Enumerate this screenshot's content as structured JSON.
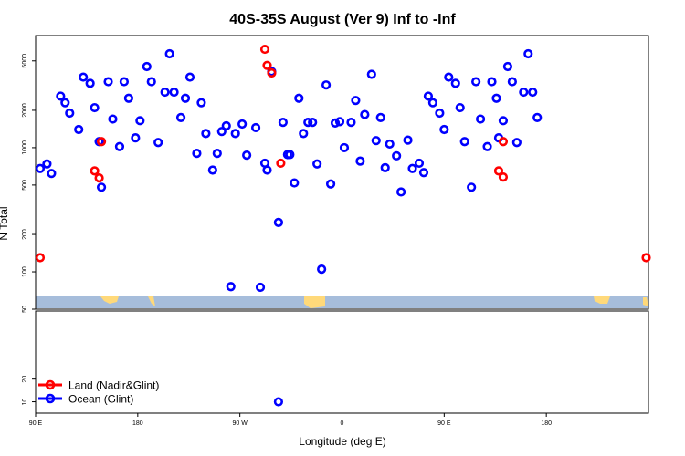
{
  "chart_data": {
    "type": "scatter",
    "title": "40S-35S August (Ver 9)   Inf to -Inf",
    "xlabel": "Longitude (deg E)",
    "ylabel": "N Total",
    "xlim": [
      -90,
      180
    ],
    "x_ticks": [
      {
        "value": -90,
        "label": "90 E"
      },
      {
        "value": -45,
        "label": "180"
      },
      {
        "value": 0,
        "label": "90 W"
      },
      {
        "value": 45,
        "label": "0"
      },
      {
        "value": 90,
        "label": "90 E"
      },
      {
        "value": 135,
        "label": "180"
      }
    ],
    "top_panel": {
      "yscale": "log",
      "ylim": [
        50,
        8000
      ],
      "y_ticks": [
        50,
        100,
        200,
        500,
        1000,
        2000,
        5000
      ]
    },
    "bottom_panel": {
      "yscale": "linear",
      "ylim": [
        5,
        50
      ],
      "y_ticks": [
        10,
        20
      ]
    },
    "legend": {
      "placement": "bottom-left of lower panel",
      "entries": [
        {
          "label": "Land (Nadir&Glint)",
          "color": "#ff0000"
        },
        {
          "label": "Ocean (Glint)",
          "color": "#0000ff"
        }
      ]
    },
    "series": [
      {
        "name": "Land (Nadir&Glint)",
        "color": "#ff0000",
        "x": [
          -64,
          -62,
          -61,
          -88,
          11,
          12,
          14,
          18,
          114,
          116,
          116,
          179
        ],
        "y": [
          650,
          570,
          1120,
          130,
          6200,
          4600,
          4000,
          750,
          650,
          580,
          1120,
          130
        ]
      },
      {
        "name": "Ocean (Glint)",
        "color": "#0000ff",
        "x": [
          -88,
          -85,
          -83,
          -79,
          -77,
          -75,
          -71,
          -69,
          -66,
          -64,
          -62,
          -61,
          -58,
          -56,
          -53,
          -51,
          -49,
          -46,
          -44,
          -41,
          -39,
          -36,
          -33,
          -31,
          -29,
          -26,
          -24,
          -22,
          -19,
          -17,
          -15,
          -12,
          -10,
          -8,
          -6,
          -4,
          -2,
          1,
          3,
          7,
          9,
          11,
          12,
          14,
          17,
          19,
          21,
          22,
          24,
          26,
          28,
          30,
          32,
          34,
          36,
          38,
          40,
          42,
          44,
          46,
          49,
          51,
          53,
          55,
          58,
          60,
          62,
          64,
          66,
          69,
          71,
          74,
          76,
          79,
          81,
          83,
          85,
          88,
          90,
          92,
          95,
          97,
          99,
          102,
          104,
          106,
          109,
          111,
          113,
          114,
          116,
          118,
          120,
          122,
          125,
          127,
          129,
          131
        ],
        "y": [
          680,
          740,
          620,
          2600,
          2300,
          1900,
          1400,
          3700,
          3300,
          2100,
          1120,
          480,
          3400,
          1700,
          1020,
          3400,
          2500,
          1200,
          1650,
          4500,
          3400,
          1100,
          2800,
          5700,
          2800,
          1750,
          2500,
          3700,
          900,
          2300,
          1300,
          660,
          900,
          1350,
          1500,
          76,
          1300,
          1550,
          870,
          1450,
          75,
          750,
          660,
          4100,
          250,
          1600,
          880,
          880,
          520,
          2500,
          1300,
          1600,
          1600,
          740,
          105,
          3200,
          510,
          1580,
          1620,
          1000,
          1600,
          2400,
          780,
          1850,
          3900,
          1140,
          1750,
          690,
          1070,
          860,
          440,
          1150,
          680,
          750,
          630,
          2600,
          2300,
          1900,
          1400,
          3700,
          3300,
          2100,
          1120,
          480,
          3400,
          1700,
          1020,
          3400,
          2500,
          1200,
          1650,
          4500,
          3400,
          1100,
          2800,
          5700,
          2800,
          1750
        ]
      },
      {
        "name": "Ocean (Glint) lower panel",
        "color": "#0000ff",
        "x": [
          17
        ],
        "y": [
          10
        ]
      }
    ],
    "colors": {
      "land": "#ff0000",
      "ocean": "#0000ff",
      "map_ocean": "#a6bddb",
      "map_land": "#ffd97a"
    }
  }
}
